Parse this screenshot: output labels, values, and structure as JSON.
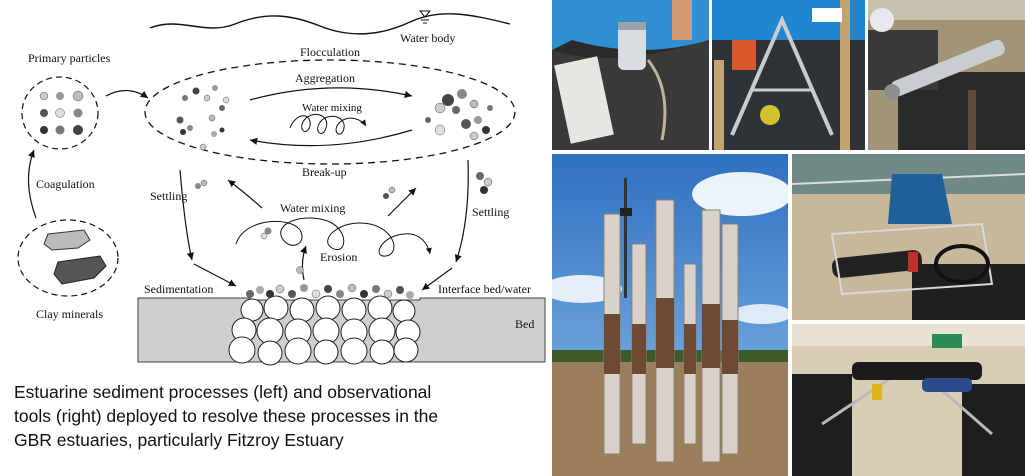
{
  "diagram": {
    "labels": {
      "water_body": "Water body",
      "primary_particles": "Primary particles",
      "flocculation": "Flocculation",
      "aggregation": "Aggregation",
      "water_mixing_upper": "Water mixing",
      "break_up": "Break-up",
      "coagulation": "Coagulation",
      "settling_left": "Settling",
      "water_mixing_lower": "Water mixing",
      "settling_right": "Settling",
      "erosion": "Erosion",
      "sedimentation": "Sedimentation",
      "interface": "Interface bed/water",
      "bed": "Bed",
      "clay_minerals": "Clay minerals"
    }
  },
  "caption": {
    "line1": "Estuarine sediment processes (left) and observational",
    "line2": "tools (right) deployed to resolve these processes in the",
    "line3": "GBR estuaries, particularly  Fitzroy Estuary"
  },
  "colors": {
    "sky_blue": "#4a86c8",
    "boat_blue": "#2f8fd0",
    "estuary_water": "#9b7f5c",
    "rusty_pile": "#6e4a35"
  }
}
